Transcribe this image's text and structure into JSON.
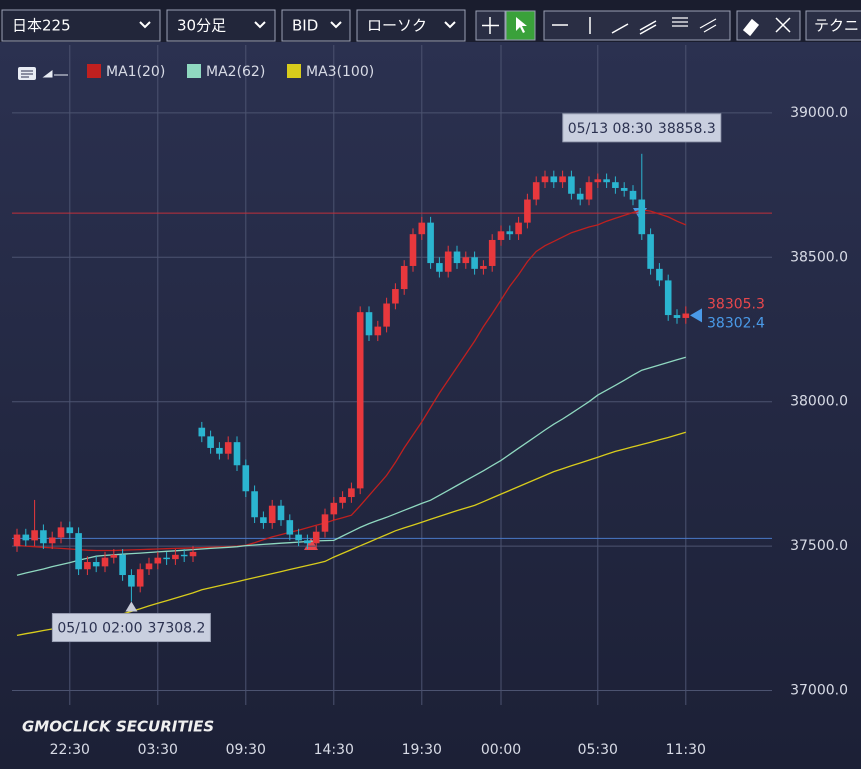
{
  "toolbar": {
    "symbol": "日本225",
    "interval": "30分足",
    "price_type": "BID",
    "chart_style": "ローソク",
    "technical": "テクニ"
  },
  "chart_data": {
    "type": "candlestick",
    "categories": [
      null,
      null,
      null,
      null,
      null,
      null,
      "22:30",
      null,
      null,
      null,
      null,
      null,
      null,
      null,
      null,
      null,
      "03:30",
      null,
      null,
      null,
      null,
      null,
      null,
      null,
      null,
      null,
      "09:30",
      null,
      null,
      null,
      null,
      null,
      null,
      null,
      null,
      null,
      "14:30",
      null,
      null,
      null,
      null,
      null,
      null,
      null,
      null,
      null,
      "19:30",
      null,
      null,
      null,
      null,
      null,
      null,
      null,
      null,
      "00:00",
      null,
      null,
      null,
      null,
      null,
      null,
      null,
      null,
      null,
      null,
      "05:30",
      null,
      null,
      null,
      null,
      null,
      null,
      null,
      null,
      null,
      "11:30"
    ],
    "open": [
      37500,
      37540,
      37520,
      37555,
      37510,
      37530,
      37565,
      37545,
      37420,
      37445,
      37430,
      37460,
      37470,
      37400,
      37360,
      37420,
      37440,
      37460,
      37455,
      37470,
      37465,
      37910,
      37880,
      37840,
      37820,
      37860,
      37780,
      37690,
      37600,
      37580,
      37640,
      37590,
      37540,
      37520,
      37510,
      37550,
      37610,
      37650,
      37670,
      37700,
      38310,
      38230,
      38260,
      38340,
      38390,
      38470,
      38580,
      38620,
      38480,
      38450,
      38520,
      38480,
      38500,
      38460,
      38470,
      38560,
      38590,
      38580,
      38620,
      38700,
      38760,
      38780,
      38760,
      38780,
      38720,
      38700,
      38760,
      38770,
      38760,
      38740,
      38730,
      38700,
      38580,
      38460,
      38420,
      38300,
      38290
    ],
    "high": [
      37560,
      37560,
      37660,
      37575,
      37550,
      37585,
      37585,
      37565,
      37465,
      37465,
      37480,
      37490,
      37490,
      37420,
      37440,
      37460,
      37480,
      37480,
      37490,
      37490,
      37500,
      37930,
      37900,
      37860,
      37880,
      37880,
      37800,
      37710,
      37620,
      37660,
      37660,
      37610,
      37560,
      37540,
      37570,
      37630,
      37670,
      37690,
      37720,
      38330,
      38330,
      38280,
      38360,
      38410,
      38490,
      38600,
      38640,
      38640,
      38500,
      38540,
      38540,
      38520,
      38520,
      38490,
      38580,
      38610,
      38610,
      38640,
      38720,
      38780,
      38800,
      38800,
      38800,
      38800,
      38740,
      38780,
      38790,
      38790,
      38780,
      38760,
      38750,
      38858.3,
      38600,
      38480,
      38440,
      38320,
      38330
    ],
    "low": [
      37480,
      37500,
      37500,
      37490,
      37490,
      37510,
      37525,
      37400,
      37400,
      37410,
      37410,
      37440,
      37380,
      37308.2,
      37340,
      37400,
      37420,
      37435,
      37435,
      37445,
      37445,
      37860,
      37820,
      37800,
      37800,
      37760,
      37670,
      37580,
      37560,
      37560,
      37570,
      37520,
      37500,
      37490,
      37490,
      37530,
      37590,
      37630,
      37650,
      37680,
      38210,
      38210,
      38240,
      38320,
      38370,
      38450,
      38560,
      38460,
      38430,
      38430,
      38460,
      38460,
      38440,
      38440,
      38450,
      38540,
      38560,
      38560,
      38600,
      38680,
      38740,
      38740,
      38740,
      38700,
      38680,
      38680,
      38740,
      38740,
      38720,
      38710,
      38680,
      38560,
      38440,
      38400,
      38280,
      38270,
      38270
    ],
    "close": [
      37540,
      37520,
      37555,
      37510,
      37530,
      37565,
      37545,
      37420,
      37445,
      37430,
      37460,
      37470,
      37400,
      37360,
      37420,
      37440,
      37460,
      37455,
      37470,
      37465,
      37480,
      37880,
      37840,
      37820,
      37860,
      37780,
      37690,
      37600,
      37580,
      37640,
      37590,
      37540,
      37520,
      37510,
      37550,
      37610,
      37650,
      37670,
      37700,
      38310,
      38230,
      38260,
      38340,
      38390,
      38470,
      38580,
      38620,
      38480,
      38450,
      38520,
      38480,
      38500,
      38460,
      38470,
      38560,
      38590,
      38580,
      38620,
      38700,
      38760,
      38780,
      38760,
      38780,
      38720,
      38700,
      38760,
      38770,
      38760,
      38740,
      38730,
      38700,
      38580,
      38460,
      38420,
      38300,
      38290,
      38305.3
    ],
    "up_color": "#e8383d",
    "down_color": "#2bb5d0",
    "series": [
      {
        "name": "MA1(20)",
        "color": "#c0201f",
        "values": [
          37503,
          37500,
          37498,
          37496,
          37494,
          37492,
          37490,
          37488,
          37486,
          37485,
          37485,
          37485,
          37486,
          37487,
          37488,
          37489,
          37490,
          37491,
          37492,
          37493,
          37494,
          37495,
          37496,
          37497,
          37498,
          37500,
          37503,
          37512,
          37522,
          37532,
          37540,
          37548,
          37555,
          37564,
          37572,
          37580,
          37590,
          37598,
          37607,
          37640,
          37675,
          37710,
          37745,
          37790,
          37840,
          37885,
          37930,
          37980,
          38030,
          38075,
          38120,
          38165,
          38210,
          38260,
          38305,
          38352,
          38400,
          38440,
          38485,
          38520,
          38540,
          38555,
          38570,
          38585,
          38595,
          38605,
          38612,
          38625,
          38635,
          38645,
          38655,
          38664,
          38660,
          38650,
          38640,
          38625,
          38612
        ]
      },
      {
        "name": "MA2(62)",
        "color": "#8fd8c0",
        "values": [
          37399,
          37407,
          37414,
          37421,
          37429,
          37436,
          37443,
          37451,
          37458,
          37465,
          37468,
          37470,
          37472,
          37474,
          37476,
          37478,
          37480,
          37482,
          37484,
          37486,
          37488,
          37490,
          37492,
          37494,
          37496,
          37498,
          37502,
          37504,
          37506,
          37508,
          37510,
          37512,
          37514,
          37516,
          37518,
          37519,
          37520,
          37535,
          37550,
          37565,
          37578,
          37589,
          37600,
          37612,
          37624,
          37636,
          37648,
          37659,
          37676,
          37693,
          37710,
          37727,
          37744,
          37761,
          37779,
          37797,
          37818,
          37839,
          37860,
          37881,
          37902,
          37922,
          37940,
          37960,
          37980,
          38000,
          38023,
          38040,
          38057,
          38074,
          38092,
          38109,
          38118,
          38127,
          38136,
          38145,
          38154
        ]
      },
      {
        "name": "MA3(100)",
        "color": "#d8cc1c",
        "values": [
          37191,
          37197,
          37202,
          37208,
          37213,
          37219,
          37224,
          37230,
          37235,
          37241,
          37247,
          37256,
          37265,
          37274,
          37283,
          37293,
          37302,
          37311,
          37320,
          37329,
          37338,
          37349,
          37356,
          37363,
          37370,
          37377,
          37384,
          37391,
          37398,
          37405,
          37412,
          37419,
          37426,
          37433,
          37440,
          37447,
          37462,
          37475,
          37488,
          37501,
          37514,
          37527,
          37540,
          37553,
          37563,
          37573,
          37583,
          37593,
          37603,
          37613,
          37623,
          37632,
          37641,
          37654,
          37667,
          37680,
          37693,
          37706,
          37719,
          37732,
          37745,
          37758,
          37768,
          37778,
          37788,
          37798,
          37808,
          37818,
          37828,
          37836,
          37844,
          37852,
          37860,
          37868,
          37876,
          37885,
          37894
        ]
      }
    ],
    "ylim": [
      36950,
      39235
    ],
    "yticks": [
      {
        "value": 37000,
        "label": "37000.0"
      },
      {
        "value": 37500,
        "label": "37500.0"
      },
      {
        "value": 38000,
        "label": "38000.0"
      },
      {
        "value": 38500,
        "label": "38500.0"
      },
      {
        "value": 39000,
        "label": "39000.0"
      }
    ],
    "grid": true,
    "hlines": [
      {
        "value": 38653,
        "color": "#c0303a"
      },
      {
        "value": 37527,
        "color": "#4a78c8"
      }
    ],
    "annotations": [
      {
        "time": "05/13 08:30",
        "value": 38858.3,
        "kind": "high"
      },
      {
        "time": "05/10 02:00",
        "value": 37308.2,
        "kind": "low"
      }
    ],
    "price_labels": [
      {
        "value": 38305.3,
        "color": "#e8474c"
      },
      {
        "value": 38302.4,
        "color": "#4a9ae8"
      }
    ],
    "watermark": "GMOCLICK SECURITIES"
  }
}
